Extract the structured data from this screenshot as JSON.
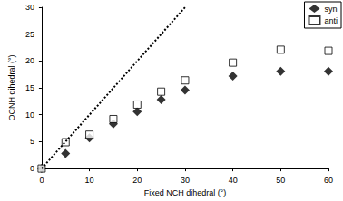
{
  "chart_data": {
    "type": "scatter",
    "x_label": "Fixed NCH dihedral (°)",
    "y_label": "OCNH dihedral (°)",
    "xlim": [
      0,
      60
    ],
    "xticks": [
      0,
      10,
      20,
      30,
      40,
      50,
      60
    ],
    "ylim": [
      0,
      30
    ],
    "yticks": [
      0,
      5,
      10,
      15,
      20,
      25,
      30
    ],
    "grid": false,
    "legend": "top-right",
    "series": [
      {
        "name": "syn",
        "color": "#000000",
        "marker": "diamond",
        "x": [
          0,
          5,
          10,
          15,
          20,
          25,
          30,
          40,
          50,
          60
        ],
        "values": [
          0,
          2.8,
          5.7,
          8.3,
          10.6,
          12.8,
          14.6,
          17.2,
          18.1,
          18.1
        ]
      },
      {
        "name": "anti",
        "color": "#000000",
        "marker": "open_square",
        "x": [
          0,
          5,
          10,
          15,
          20,
          25,
          30,
          40,
          50,
          60
        ],
        "values": [
          0,
          4.9,
          6.3,
          9.2,
          11.9,
          14.3,
          16.4,
          19.7,
          22.1,
          21.9
        ]
      },
      {
        "type": "line",
        "line_style": "dotted",
        "color": "#000000",
        "x": [
          0,
          30
        ],
        "values": [
          0,
          30
        ]
      }
    ]
  }
}
